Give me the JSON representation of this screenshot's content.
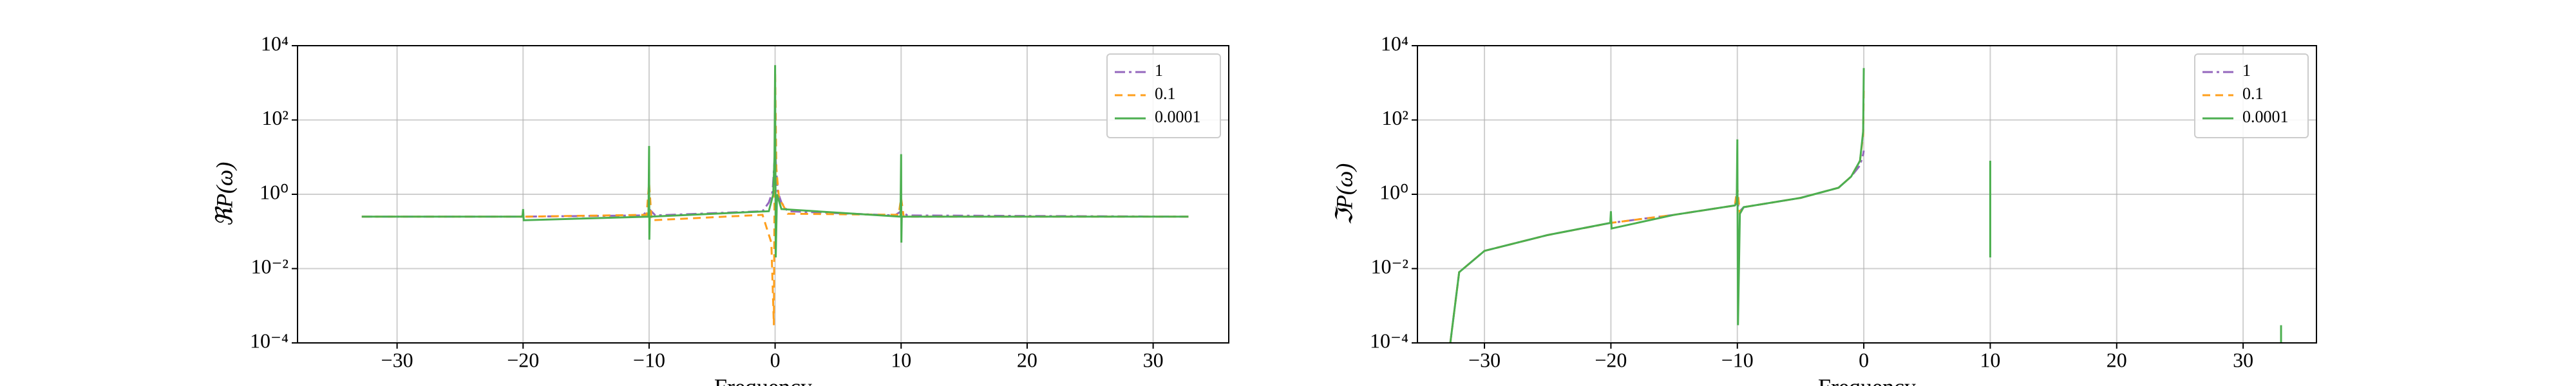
{
  "chart_data": [
    {
      "type": "line",
      "ylabel": "ℜP(ω)",
      "xlabel": "Frequency",
      "log_y": true,
      "grid": true,
      "legend": "upper right",
      "xlim": [
        -37.9,
        36
      ],
      "ylim": [
        0.0001,
        10000
      ],
      "xticks": [
        {
          "value": -30,
          "label": "−30"
        },
        {
          "value": -20,
          "label": "−20"
        },
        {
          "value": -10,
          "label": "−10"
        },
        0,
        10,
        20,
        30
      ],
      "yticks": [
        {
          "value": 0.0001,
          "label": "10⁻⁴"
        },
        {
          "value": 0.01,
          "label": "10⁻²"
        },
        {
          "value": 1,
          "label": "10⁰"
        },
        {
          "value": 100,
          "label": "10²"
        },
        {
          "value": 10000,
          "label": "10⁴"
        }
      ],
      "series": [
        {
          "name": "1",
          "color": "#9467bd",
          "linestyle": "dashdot",
          "x": [
            -32.8,
            -20,
            -10.5,
            -10,
            -9.5,
            -1,
            -0.5,
            -0.2,
            0,
            0.2,
            0.5,
            1,
            9.5,
            10,
            10.5,
            32.8
          ],
          "values": [
            0.25,
            0.25,
            0.27,
            0.4,
            0.27,
            0.35,
            0.6,
            1.2,
            15,
            1.2,
            0.6,
            0.35,
            0.27,
            0.35,
            0.27,
            0.25
          ]
        },
        {
          "name": "0.1",
          "color": "#ff9f1c",
          "linestyle": "dashed",
          "x": [
            -32.8,
            -20.1,
            -20,
            -19.9,
            -10.2,
            -10,
            -9.8,
            -1,
            -0.3,
            -0.1,
            0,
            0.1,
            0.3,
            1,
            9.8,
            10,
            10.2,
            32.8
          ],
          "values": [
            0.25,
            0.25,
            0.3,
            0.25,
            0.28,
            2,
            0.2,
            0.28,
            0.05,
            0.0003,
            2000,
            5,
            0.8,
            0.3,
            0.28,
            0.8,
            0.25,
            0.25
          ]
        },
        {
          "name": "0.0001",
          "color": "#4caf50",
          "linestyle": "solid",
          "x": [
            -32.8,
            -20.05,
            -20,
            -19.95,
            -10.05,
            -10,
            -9.98,
            -9.95,
            -0.5,
            -0.15,
            -0.05,
            0,
            0.05,
            0.15,
            0.5,
            9.95,
            10,
            10.02,
            10.05,
            32.8
          ],
          "values": [
            0.25,
            0.25,
            0.4,
            0.2,
            0.25,
            20,
            0.06,
            0.25,
            0.35,
            1,
            10,
            3000,
            0.02,
            1,
            0.4,
            0.25,
            12,
            0.05,
            0.25,
            0.25
          ]
        }
      ]
    },
    {
      "type": "line",
      "ylabel": "ℑP(ω)",
      "xlabel": "Frequency",
      "log_y": true,
      "grid": true,
      "legend": "upper right",
      "xlim": [
        -35.3,
        35.8
      ],
      "ylim": [
        0.0001,
        10000
      ],
      "xticks": [
        {
          "value": -30,
          "label": "−30"
        },
        {
          "value": -20,
          "label": "−20"
        },
        {
          "value": -10,
          "label": "−10"
        },
        0,
        10,
        20,
        30
      ],
      "yticks": [
        {
          "value": 0.0001,
          "label": "10⁻⁴"
        },
        {
          "value": 0.01,
          "label": "10⁻²"
        },
        {
          "value": 1,
          "label": "10⁰"
        },
        {
          "value": 100,
          "label": "10²"
        },
        {
          "value": 10000,
          "label": "10⁴"
        }
      ],
      "series": [
        {
          "name": "1",
          "color": "#9467bd",
          "linestyle": "dashdot",
          "x": [
            -32.7,
            -32,
            -30,
            -25,
            -20,
            -15,
            -10.2,
            -10,
            -9.8,
            -9.5,
            -5,
            -2,
            -1,
            -0.3,
            -0.05,
            0
          ],
          "values": [
            0.0001,
            0.008,
            0.03,
            0.08,
            0.17,
            0.28,
            0.5,
            0.6,
            0.35,
            0.45,
            0.8,
            1.5,
            3,
            6,
            12,
            15
          ]
        },
        {
          "name": "0.1",
          "color": "#ff9f1c",
          "linestyle": "dashed",
          "x": [
            -32.7,
            -32,
            -30,
            -25,
            -20,
            -15,
            -10.2,
            -10,
            -9.8,
            -9.5,
            -5,
            -2,
            -1,
            -0.3,
            -0.05,
            0
          ],
          "values": [
            0.0001,
            0.008,
            0.03,
            0.08,
            0.17,
            0.28,
            0.5,
            1.5,
            0.3,
            0.45,
            0.8,
            1.5,
            3,
            8,
            40,
            800
          ]
        },
        {
          "name": "0.0001",
          "color": "#4caf50",
          "linestyle": "solid",
          "x": [
            -32.7,
            -32,
            -30,
            -25,
            -20.05,
            -20,
            -19.95,
            -15,
            -10.2,
            -10.05,
            -10,
            -9.95,
            -9.8,
            -9.5,
            -5,
            -2,
            -1,
            -0.3,
            -0.05,
            0,
            5,
            10,
            10,
            20,
            33,
            33
          ],
          "values": [
            0.0001,
            0.008,
            0.03,
            0.08,
            0.17,
            0.35,
            0.12,
            0.28,
            0.5,
            0.6,
            30,
            0.0003,
            0.3,
            0.45,
            0.8,
            1.5,
            3,
            8,
            50,
            2500,
            null,
            0.02,
            8,
            null,
            0.0001,
            0.0003
          ]
        }
      ]
    }
  ]
}
